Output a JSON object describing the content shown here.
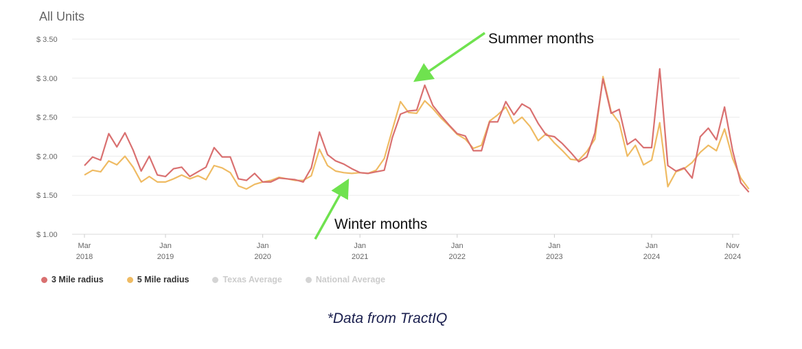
{
  "chart_data": {
    "type": "line",
    "title": "All Units",
    "xlabel": "",
    "ylabel": "",
    "y_ticks": [
      "$ 1.00",
      "$ 1.50",
      "$ 2.00",
      "$ 2.50",
      "$ 3.00",
      "$ 3.50"
    ],
    "ylim": [
      1.0,
      3.5
    ],
    "x_start": "2018-03",
    "x_end": "2024-11",
    "grid": true,
    "legend_position": "bottom-left",
    "x_ticks": [
      {
        "date": "2018-03",
        "month": "Mar",
        "year": "2018"
      },
      {
        "date": "2019-01",
        "month": "Jan",
        "year": "2019"
      },
      {
        "date": "2020-01",
        "month": "Jan",
        "year": "2020"
      },
      {
        "date": "2021-01",
        "month": "Jan",
        "year": "2021"
      },
      {
        "date": "2022-01",
        "month": "Jan",
        "year": "2022"
      },
      {
        "date": "2023-01",
        "month": "Jan",
        "year": "2023"
      },
      {
        "date": "2024-01",
        "month": "Jan",
        "year": "2024"
      },
      {
        "date": "2024-11",
        "month": "Nov",
        "year": "2024"
      }
    ],
    "series": [
      {
        "name": "3 Mile radius",
        "color": "#d97070",
        "values": [
          1.88,
          1.99,
          1.95,
          2.29,
          2.12,
          2.3,
          2.08,
          1.81,
          2.0,
          1.76,
          1.74,
          1.84,
          1.86,
          1.74,
          1.8,
          1.86,
          2.11,
          1.99,
          1.99,
          1.71,
          1.69,
          1.78,
          1.67,
          1.67,
          1.72,
          1.71,
          1.7,
          1.67,
          1.85,
          2.31,
          2.02,
          1.94,
          1.9,
          1.84,
          1.79,
          1.78,
          1.8,
          1.82,
          2.24,
          2.54,
          2.58,
          2.59,
          2.91,
          2.65,
          2.52,
          2.4,
          2.29,
          2.26,
          2.07,
          2.07,
          2.44,
          2.44,
          2.7,
          2.53,
          2.67,
          2.61,
          2.42,
          2.27,
          2.25,
          2.16,
          2.05,
          1.93,
          1.99,
          2.3,
          2.99,
          2.55,
          2.6,
          2.15,
          2.22,
          2.11,
          2.11,
          3.12,
          1.88,
          1.81,
          1.85,
          1.72,
          2.25,
          2.36,
          2.21,
          2.63,
          2.07,
          1.66,
          1.54
        ]
      },
      {
        "name": "5 Mile radius",
        "color": "#efbb63",
        "values": [
          1.76,
          1.82,
          1.8,
          1.94,
          1.89,
          2.0,
          1.86,
          1.67,
          1.74,
          1.67,
          1.67,
          1.71,
          1.76,
          1.71,
          1.75,
          1.7,
          1.88,
          1.85,
          1.79,
          1.62,
          1.58,
          1.64,
          1.67,
          1.69,
          1.73,
          1.71,
          1.69,
          1.69,
          1.75,
          2.09,
          1.88,
          1.81,
          1.79,
          1.78,
          1.79,
          1.78,
          1.82,
          1.97,
          2.34,
          2.7,
          2.56,
          2.55,
          2.71,
          2.61,
          2.49,
          2.39,
          2.28,
          2.22,
          2.1,
          2.14,
          2.45,
          2.53,
          2.63,
          2.42,
          2.5,
          2.38,
          2.2,
          2.29,
          2.17,
          2.07,
          1.96,
          1.95,
          2.06,
          2.22,
          3.02,
          2.57,
          2.43,
          2.0,
          2.14,
          1.89,
          1.95,
          2.43,
          1.61,
          1.8,
          1.84,
          1.92,
          2.05,
          2.14,
          2.07,
          2.35,
          1.97,
          1.72,
          1.58
        ]
      },
      {
        "name": "Texas Average",
        "color": "#d4d4d4",
        "values": []
      },
      {
        "name": "National Average",
        "color": "#d4d4d4",
        "values": []
      }
    ],
    "annotations": [
      {
        "text": "Summer months",
        "date": "2021-07",
        "y": 2.91
      },
      {
        "text": "Winter months",
        "date": "2020-12",
        "y": 1.78
      }
    ]
  },
  "footnote": "*Data from TractIQ"
}
